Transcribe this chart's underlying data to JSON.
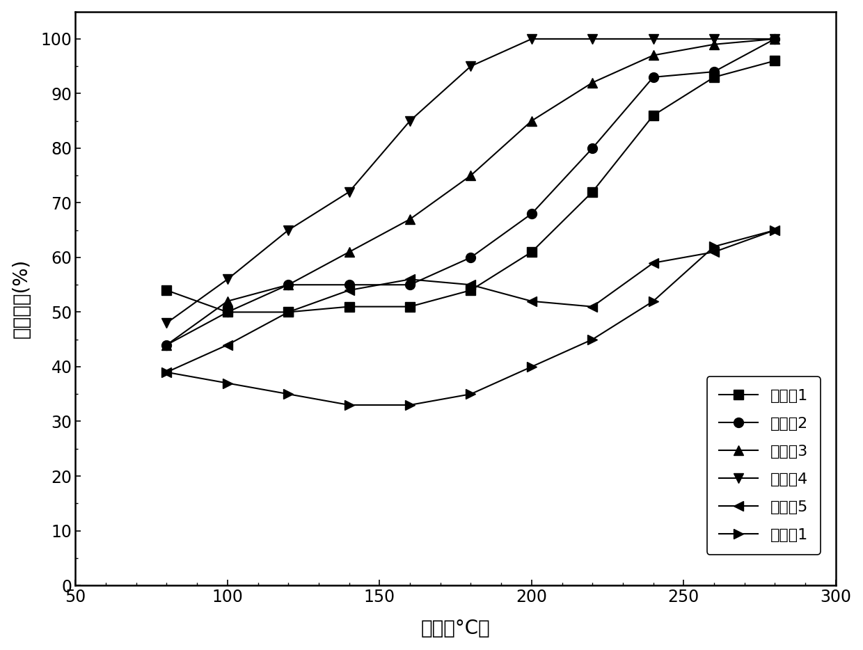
{
  "title": "",
  "xlabel": "温度（°C）",
  "ylabel": "脱硝效率(%)",
  "xlim": [
    50,
    300
  ],
  "ylim": [
    0,
    105
  ],
  "xticks": [
    50,
    100,
    150,
    200,
    250,
    300
  ],
  "yticks": [
    0,
    10,
    20,
    30,
    40,
    50,
    60,
    70,
    80,
    90,
    100
  ],
  "series": [
    {
      "label": "实施例1",
      "x": [
        80,
        100,
        120,
        140,
        160,
        180,
        200,
        220,
        240,
        260,
        280
      ],
      "y": [
        54,
        50,
        50,
        51,
        51,
        54,
        61,
        72,
        86,
        93,
        96
      ],
      "marker": "s",
      "color": "#000000",
      "linecolor": "#000000"
    },
    {
      "label": "实施例2",
      "x": [
        80,
        100,
        120,
        140,
        160,
        180,
        200,
        220,
        240,
        260,
        280
      ],
      "y": [
        44,
        50,
        55,
        55,
        55,
        60,
        68,
        80,
        93,
        94,
        100
      ],
      "marker": "o",
      "color": "#000000",
      "linecolor": "#000000"
    },
    {
      "label": "实施例3",
      "x": [
        80,
        100,
        120,
        140,
        160,
        180,
        200,
        220,
        240,
        260,
        280
      ],
      "y": [
        44,
        52,
        55,
        61,
        67,
        75,
        85,
        92,
        97,
        99,
        100
      ],
      "marker": "^",
      "color": "#000000",
      "linecolor": "#000000"
    },
    {
      "label": "实施例4",
      "x": [
        80,
        100,
        120,
        140,
        160,
        180,
        200,
        220,
        240,
        260,
        280
      ],
      "y": [
        48,
        56,
        65,
        72,
        85,
        95,
        100,
        100,
        100,
        100,
        100
      ],
      "marker": "v",
      "color": "#000000",
      "linecolor": "#000000"
    },
    {
      "label": "实施例5",
      "x": [
        80,
        100,
        120,
        140,
        160,
        180,
        200,
        220,
        240,
        260,
        280
      ],
      "y": [
        39,
        44,
        50,
        54,
        56,
        55,
        52,
        51,
        59,
        61,
        65
      ],
      "marker": "<",
      "color": "#000000",
      "linecolor": "#000000"
    },
    {
      "label": "对比例1",
      "x": [
        80,
        100,
        120,
        140,
        160,
        180,
        200,
        220,
        240,
        260,
        280
      ],
      "y": [
        39,
        37,
        35,
        33,
        33,
        35,
        40,
        45,
        52,
        62,
        65
      ],
      "marker": ">",
      "color": "#000000",
      "linecolor": "#000000"
    }
  ],
  "legend_loc": "lower right",
  "figure_bg": "#ffffff",
  "axes_bg": "#ffffff",
  "font_size_label": 20,
  "font_size_tick": 17,
  "font_size_legend": 16,
  "marker_size": 10,
  "line_width": 1.5
}
